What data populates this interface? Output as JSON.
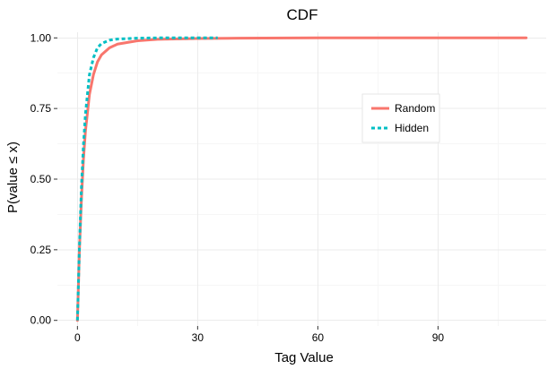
{
  "chart_data": {
    "type": "line",
    "title": "CDF",
    "xlabel": "Tag Value",
    "ylabel": "P(value ≤ x)",
    "xlim": [
      -5,
      117
    ],
    "ylim": [
      -0.02,
      1.02
    ],
    "x_ticks": [
      0,
      30,
      60,
      90
    ],
    "x_tick_labels": [
      "0",
      "30",
      "60",
      "90"
    ],
    "y_ticks": [
      0,
      0.25,
      0.5,
      0.75,
      1.0
    ],
    "y_tick_labels": [
      "0.00",
      "0.25",
      "0.50",
      "0.75",
      "1.00"
    ],
    "x_minor_ticks": [
      15,
      45,
      75,
      105
    ],
    "y_minor_ticks": [
      0.125,
      0.375,
      0.625,
      0.875
    ],
    "grid": true,
    "legend_position": "right",
    "series": [
      {
        "name": "Random",
        "color": "#f8766d",
        "dash": "solid",
        "x": [
          0,
          0.5,
          1,
          1.5,
          2,
          3,
          4,
          5,
          6,
          8,
          10,
          15,
          20,
          30,
          40,
          60,
          80,
          100,
          112
        ],
        "y": [
          0.0,
          0.25,
          0.43,
          0.57,
          0.67,
          0.8,
          0.87,
          0.915,
          0.94,
          0.965,
          0.978,
          0.99,
          0.995,
          0.998,
          0.999,
          1.0,
          1.0,
          1.0,
          1.0
        ]
      },
      {
        "name": "Hidden",
        "color": "#00bfc4",
        "dash": "dashed",
        "x": [
          0,
          0.5,
          1,
          1.5,
          2,
          3,
          4,
          5,
          6,
          8,
          10,
          15,
          20,
          30,
          35
        ],
        "y": [
          0.0,
          0.26,
          0.47,
          0.62,
          0.73,
          0.87,
          0.93,
          0.965,
          0.98,
          0.992,
          0.996,
          0.999,
          1.0,
          1.0,
          1.0
        ]
      }
    ]
  }
}
